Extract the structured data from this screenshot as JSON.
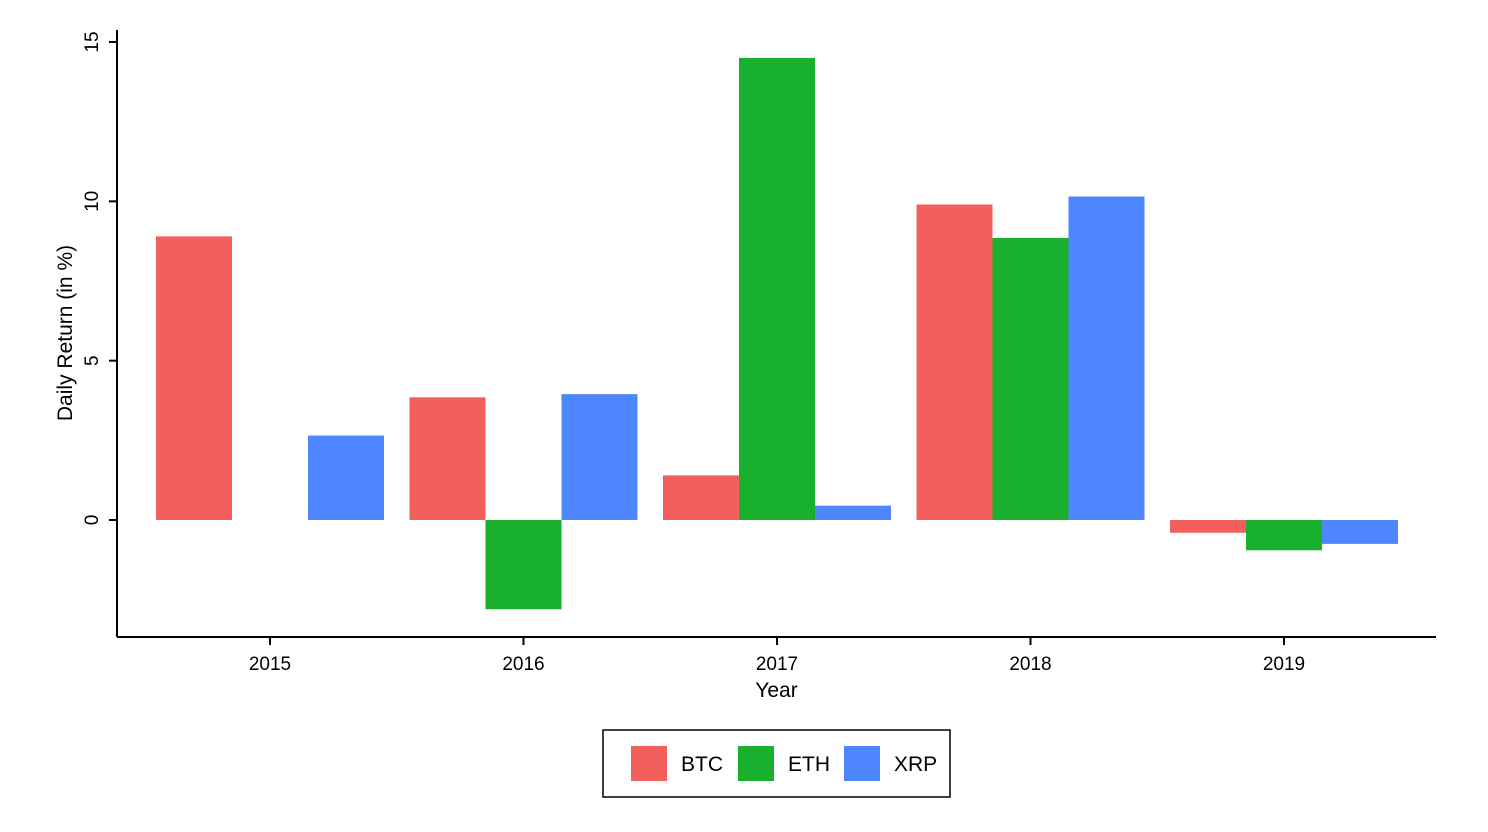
{
  "chart_data": {
    "type": "bar",
    "title": "",
    "xlabel": "Year",
    "ylabel": "Daily Return (in %)",
    "categories": [
      "2015",
      "2016",
      "2017",
      "2018",
      "2019"
    ],
    "ylim": [
      -3.7,
      15.5
    ],
    "yticks": [
      0,
      5,
      10,
      15
    ],
    "grid": false,
    "legend_position": "bottom",
    "series": [
      {
        "name": "BTC",
        "color": "#f25f5c",
        "values": [
          8.9,
          3.85,
          1.4,
          9.9,
          -0.4
        ]
      },
      {
        "name": "ETH",
        "color": "#19b02e",
        "values": [
          null,
          -2.8,
          14.5,
          8.85,
          -0.95
        ]
      },
      {
        "name": "XRP",
        "color": "#4d86ff",
        "values": [
          2.65,
          3.95,
          0.45,
          10.15,
          -0.75
        ]
      }
    ]
  }
}
